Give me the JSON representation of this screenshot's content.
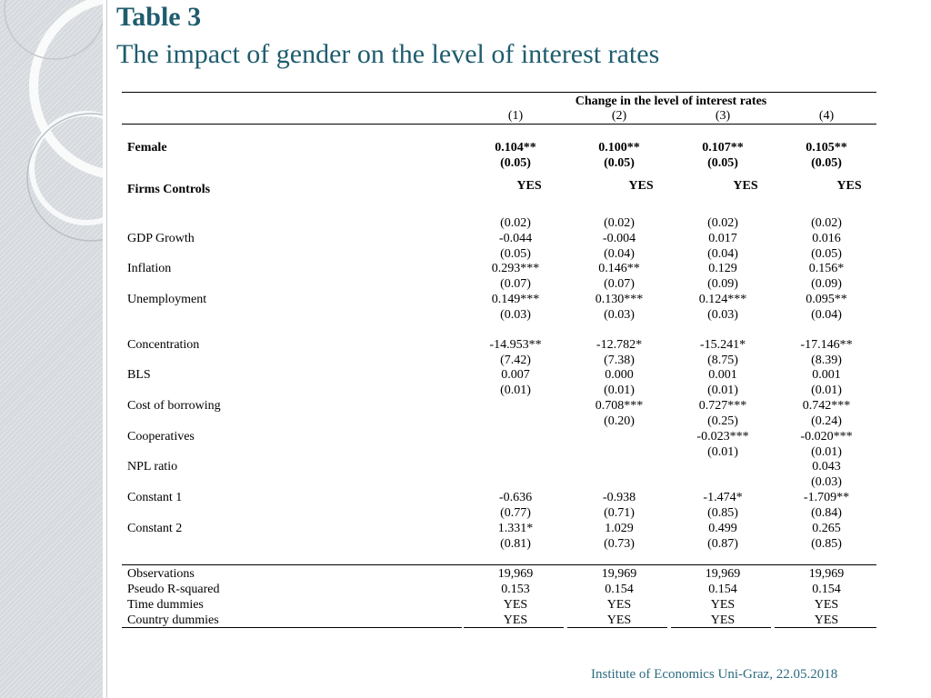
{
  "slide": {
    "title": "Table 3",
    "subtitle": "The impact of gender on the level of interest rates",
    "footer": "Institute of Economics Uni-Graz, 22.05.2018",
    "accent_color": "#1f5c6e"
  },
  "table": {
    "group_header": "Change in the level of interest rates",
    "columns": [
      "(1)",
      "(2)",
      "(3)",
      "(4)"
    ],
    "female": {
      "label": "Female",
      "coef": [
        "0.104**",
        "0.100**",
        "0.107**",
        "0.105**"
      ],
      "se": [
        "(0.05)",
        "(0.05)",
        "(0.05)",
        "(0.05)"
      ]
    },
    "firms_controls": {
      "label": "Firms Controls",
      "values": [
        "YES",
        "YES",
        "YES",
        "YES"
      ]
    },
    "pre_se": [
      "(0.02)",
      "(0.02)",
      "(0.02)",
      "(0.02)"
    ],
    "gdp": {
      "label": "GDP Growth",
      "coef": [
        "-0.044",
        "-0.004",
        "0.017",
        "0.016"
      ],
      "se": [
        "(0.05)",
        "(0.04)",
        "(0.04)",
        "(0.05)"
      ]
    },
    "inflation": {
      "label": "Inflation",
      "coef": [
        "0.293***",
        "0.146**",
        "0.129",
        "0.156*"
      ],
      "se": [
        "(0.07)",
        "(0.07)",
        "(0.09)",
        "(0.09)"
      ]
    },
    "unemployment": {
      "label": "Unemployment",
      "coef": [
        "0.149***",
        "0.130***",
        "0.124***",
        "0.095**"
      ],
      "se": [
        "(0.03)",
        "(0.03)",
        "(0.03)",
        "(0.04)"
      ]
    },
    "concentration": {
      "label": "Concentration",
      "coef": [
        "-14.953**",
        "-12.782*",
        "-15.241*",
        "-17.146**"
      ],
      "se": [
        "(7.42)",
        "(7.38)",
        "(8.75)",
        "(8.39)"
      ]
    },
    "bls": {
      "label": "BLS",
      "coef": [
        "0.007",
        "0.000",
        "0.001",
        "0.001"
      ],
      "se": [
        "(0.01)",
        "(0.01)",
        "(0.01)",
        "(0.01)"
      ]
    },
    "cost_borrowing": {
      "label": "Cost of borrowing",
      "coef": [
        "",
        "0.708***",
        "0.727***",
        "0.742***"
      ],
      "se": [
        "",
        "(0.20)",
        "(0.25)",
        "(0.24)"
      ]
    },
    "cooperatives": {
      "label": "Cooperatives",
      "coef": [
        "",
        "",
        "-0.023***",
        "-0.020***"
      ],
      "se": [
        "",
        "",
        "(0.01)",
        "(0.01)"
      ]
    },
    "npl": {
      "label": "NPL ratio",
      "coef": [
        "",
        "",
        "",
        "0.043"
      ],
      "se": [
        "",
        "",
        "",
        "(0.03)"
      ]
    },
    "constant1": {
      "label": "Constant 1",
      "coef": [
        "-0.636",
        "-0.938",
        "-1.474*",
        "-1.709**"
      ],
      "se": [
        "(0.77)",
        "(0.71)",
        "(0.85)",
        "(0.84)"
      ]
    },
    "constant2": {
      "label": "Constant 2",
      "coef": [
        "1.331*",
        "1.029",
        "0.499",
        "0.265"
      ],
      "se": [
        "(0.81)",
        "(0.73)",
        "(0.87)",
        "(0.85)"
      ]
    },
    "observations": {
      "label": "Observations",
      "values": [
        "19,969",
        "19,969",
        "19,969",
        "19,969"
      ]
    },
    "pseudo_r2": {
      "label": "Pseudo R-squared",
      "values": [
        "0.153",
        "0.154",
        "0.154",
        "0.154"
      ]
    },
    "time_dummies": {
      "label": "Time dummies",
      "values": [
        "YES",
        "YES",
        "YES",
        "YES"
      ]
    },
    "country_dummies": {
      "label": "Country dummies",
      "values": [
        "YES",
        "YES",
        "YES",
        "YES"
      ]
    }
  }
}
